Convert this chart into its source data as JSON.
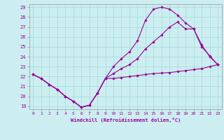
{
  "xlabel": "Windchill (Refroidissement éolien,°C)",
  "bg_color": "#cceef0",
  "line_color": "#990099",
  "grid_color": "#aadddd",
  "xlim": [
    -0.5,
    23.5
  ],
  "ylim": [
    18.7,
    29.3
  ],
  "xticks": [
    0,
    1,
    2,
    3,
    4,
    5,
    6,
    7,
    8,
    9,
    10,
    11,
    12,
    13,
    14,
    15,
    16,
    17,
    18,
    19,
    20,
    21,
    22,
    23
  ],
  "yticks": [
    19,
    20,
    21,
    22,
    23,
    24,
    25,
    26,
    27,
    28,
    29
  ],
  "series": [
    {
      "x": [
        0,
        1,
        2,
        3,
        4,
        5,
        6,
        7,
        8,
        9,
        10,
        11,
        12,
        13,
        14,
        15,
        16,
        17,
        18,
        19,
        20,
        21,
        22,
        23
      ],
      "y": [
        22.2,
        21.8,
        21.2,
        20.7,
        20.0,
        19.5,
        18.9,
        19.1,
        20.3,
        21.8,
        21.8,
        21.9,
        22.0,
        22.1,
        22.2,
        22.3,
        22.35,
        22.4,
        22.5,
        22.6,
        22.7,
        22.8,
        23.0,
        23.2
      ]
    },
    {
      "x": [
        0,
        1,
        2,
        3,
        4,
        5,
        6,
        7,
        8,
        9,
        10,
        11,
        12,
        13,
        14,
        15,
        16,
        17,
        18,
        19,
        20,
        21,
        22,
        23
      ],
      "y": [
        22.2,
        21.8,
        21.2,
        20.7,
        20.0,
        19.5,
        18.9,
        19.1,
        20.3,
        21.8,
        22.3,
        22.8,
        23.2,
        23.8,
        24.8,
        25.5,
        26.2,
        27.0,
        27.5,
        26.8,
        26.8,
        25.0,
        24.1,
        23.2
      ]
    },
    {
      "x": [
        0,
        1,
        2,
        3,
        4,
        5,
        6,
        7,
        8,
        9,
        10,
        11,
        12,
        13,
        14,
        15,
        16,
        17,
        18,
        19,
        20,
        21,
        22,
        23
      ],
      "y": [
        22.2,
        21.8,
        21.2,
        20.7,
        20.0,
        19.5,
        18.9,
        19.1,
        20.3,
        21.8,
        23.0,
        23.8,
        24.5,
        25.6,
        27.7,
        28.8,
        29.0,
        28.8,
        28.2,
        27.4,
        26.8,
        25.2,
        24.0,
        23.2
      ]
    }
  ]
}
